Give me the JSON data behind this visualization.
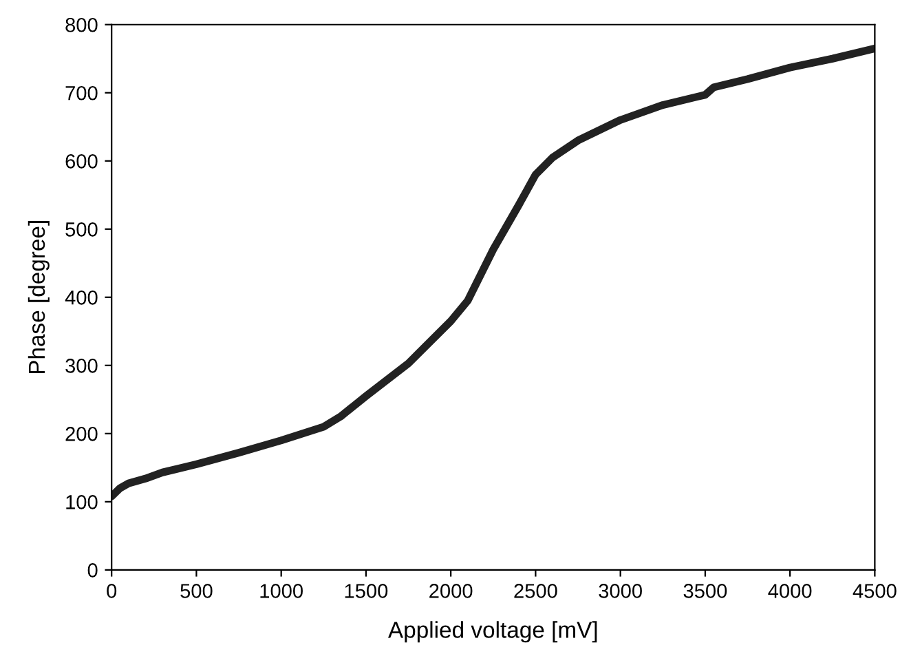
{
  "chart_data": {
    "type": "line",
    "xlabel": "Applied voltage [mV]",
    "ylabel": "Phase [degree]",
    "x": [
      0,
      50,
      100,
      200,
      300,
      500,
      750,
      1000,
      1250,
      1350,
      1500,
      1750,
      2000,
      2100,
      2250,
      2400,
      2500,
      2600,
      2750,
      3000,
      3250,
      3500,
      3550,
      3750,
      4000,
      4250,
      4500
    ],
    "series": [
      {
        "color": "#222222",
        "values": [
          108,
          120,
          127,
          134,
          143,
          155,
          172,
          190,
          210,
          225,
          255,
          303,
          365,
          395,
          470,
          535,
          580,
          605,
          630,
          660,
          682,
          697,
          708,
          720,
          737,
          750,
          765
        ]
      }
    ],
    "xlim": [
      0,
      4500
    ],
    "xticks": [
      0,
      500,
      1000,
      1500,
      2000,
      2500,
      3000,
      3500,
      4000,
      4500
    ],
    "ylim": [
      0,
      800
    ],
    "yticks": [
      0,
      100,
      200,
      300,
      400,
      500,
      600,
      700,
      800
    ],
    "grid": false,
    "legend": false,
    "marker": "none",
    "line_style": "solid"
  }
}
